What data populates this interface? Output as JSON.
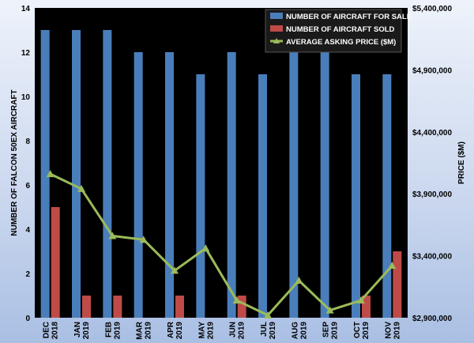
{
  "chart_data": {
    "type": "bar",
    "categories": [
      [
        "DEC",
        "2018"
      ],
      [
        "JAN",
        "2019"
      ],
      [
        "FEB",
        "2019"
      ],
      [
        "MAR",
        "2019"
      ],
      [
        "APR",
        "2019"
      ],
      [
        "MAY",
        "2019"
      ],
      [
        "JUN",
        "2019"
      ],
      [
        "JUL",
        "2019"
      ],
      [
        "AUG",
        "2019"
      ],
      [
        "SEP",
        "2019"
      ],
      [
        "OCT",
        "2019"
      ],
      [
        "NOV",
        "2019"
      ]
    ],
    "series": [
      {
        "name": "NUMBER OF AIRCRAFT FOR SALE",
        "type": "bar",
        "axis": "left",
        "color": "#4a7ebb",
        "values": [
          13,
          13,
          13,
          12,
          12,
          11,
          12,
          11,
          12,
          12,
          11,
          11
        ]
      },
      {
        "name": "NUMBER OF AIRCRAFT SOLD",
        "type": "bar",
        "axis": "left",
        "color": "#be4b48",
        "values": [
          5,
          1,
          1,
          0,
          1,
          0,
          1,
          0,
          0,
          0,
          1,
          3
        ]
      },
      {
        "name": "AVERAGE ASKING PRICE ($M)",
        "type": "line",
        "axis": "right",
        "color": "#9bbb59",
        "values": [
          4060000,
          3940000,
          3560000,
          3530000,
          3280000,
          3460000,
          3040000,
          2920000,
          3200000,
          2960000,
          3040000,
          3320000
        ]
      }
    ],
    "ylabel": "NUMBER OF FALCON 50EX AIRCRAFT",
    "y2label": "PRICE ($M)",
    "ylim": [
      0,
      14
    ],
    "yticks": [
      0,
      2,
      4,
      6,
      8,
      10,
      12,
      14
    ],
    "y2lim": [
      2900000,
      5400000
    ],
    "y2ticks": [
      2900000,
      3400000,
      3900000,
      4400000,
      4900000,
      5400000
    ],
    "y2tick_labels": [
      "$2,900,000",
      "$3,400,000",
      "$3,900,000",
      "$4,400,000",
      "$4,900,000",
      "$5,400,000"
    ],
    "legend_position": "top-right",
    "grid": false,
    "plot_background": "#000000"
  }
}
